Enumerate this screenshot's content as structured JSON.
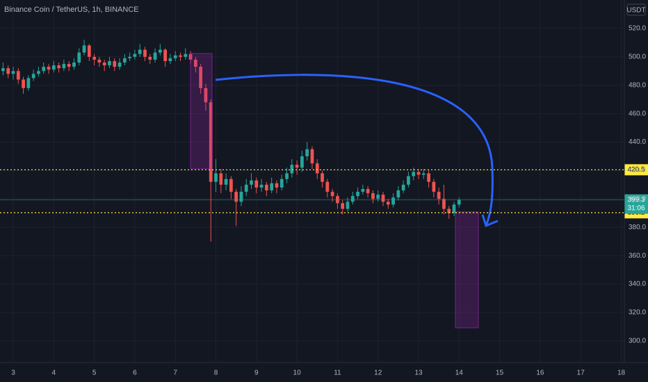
{
  "chart_data": {
    "type": "candlestick",
    "title": "Binance Coin / TetherUS, 1h, BINANCE",
    "currency": "USDT",
    "up_color": "#26a69a",
    "down_color": "#ef5350",
    "xlim": [
      2.674,
      18.077
    ],
    "ylim": [
      284.8,
      540
    ],
    "xticks": [
      3,
      4,
      5,
      6,
      7,
      8,
      9,
      10,
      11,
      12,
      13,
      14,
      15,
      16,
      17,
      18
    ],
    "yticks": [
      {
        "value": 300,
        "label": "300.0"
      },
      {
        "value": 320,
        "label": "320.0"
      },
      {
        "value": 340,
        "label": "340.0"
      },
      {
        "value": 360,
        "label": "360.0"
      },
      {
        "value": 380,
        "label": "380.0"
      },
      {
        "value": 400,
        "label": "400.0"
      },
      {
        "value": 420,
        "label": "420.0"
      },
      {
        "value": 440,
        "label": "440.0"
      },
      {
        "value": 460,
        "label": "460.0"
      },
      {
        "value": 480,
        "label": "480.0"
      },
      {
        "value": 500,
        "label": "500.0"
      },
      {
        "value": 520,
        "label": "520.0"
      }
    ],
    "grid": true,
    "levels": [
      {
        "value": 420.5,
        "color": "#ffeb3b"
      },
      {
        "value": 390.2,
        "color": "#ffeb3b"
      }
    ],
    "last": {
      "value": 399.3,
      "countdown": "31:06",
      "color": "#26a69a"
    },
    "candles": [
      {
        "x": 2.75,
        "o": 490,
        "h": 496,
        "l": 487,
        "c": 492
      },
      {
        "x": 2.875,
        "o": 492,
        "h": 494,
        "l": 485,
        "c": 488
      },
      {
        "x": 3,
        "o": 488,
        "h": 493,
        "l": 484,
        "c": 490
      },
      {
        "x": 3.125,
        "o": 490,
        "h": 492,
        "l": 481,
        "c": 484
      },
      {
        "x": 3.25,
        "o": 484,
        "h": 486,
        "l": 474,
        "c": 478
      },
      {
        "x": 3.375,
        "o": 478,
        "h": 487,
        "l": 476,
        "c": 485
      },
      {
        "x": 3.5,
        "o": 485,
        "h": 491,
        "l": 483,
        "c": 488
      },
      {
        "x": 3.625,
        "o": 488,
        "h": 493,
        "l": 486,
        "c": 490
      },
      {
        "x": 3.75,
        "o": 490,
        "h": 496,
        "l": 488,
        "c": 493
      },
      {
        "x": 3.875,
        "o": 493,
        "h": 495,
        "l": 488,
        "c": 491
      },
      {
        "x": 4,
        "o": 491,
        "h": 497,
        "l": 489,
        "c": 494
      },
      {
        "x": 4.125,
        "o": 494,
        "h": 496,
        "l": 489,
        "c": 492
      },
      {
        "x": 4.25,
        "o": 492,
        "h": 498,
        "l": 490,
        "c": 495
      },
      {
        "x": 4.375,
        "o": 495,
        "h": 497,
        "l": 490,
        "c": 493
      },
      {
        "x": 4.5,
        "o": 493,
        "h": 499,
        "l": 491,
        "c": 496
      },
      {
        "x": 4.625,
        "o": 496,
        "h": 506,
        "l": 494,
        "c": 503
      },
      {
        "x": 4.75,
        "o": 503,
        "h": 512,
        "l": 501,
        "c": 508
      },
      {
        "x": 4.875,
        "o": 508,
        "h": 509,
        "l": 497,
        "c": 500
      },
      {
        "x": 5,
        "o": 500,
        "h": 502,
        "l": 494,
        "c": 498
      },
      {
        "x": 5.125,
        "o": 498,
        "h": 500,
        "l": 493,
        "c": 496
      },
      {
        "x": 5.25,
        "o": 496,
        "h": 498,
        "l": 490,
        "c": 494
      },
      {
        "x": 5.375,
        "o": 494,
        "h": 500,
        "l": 492,
        "c": 497
      },
      {
        "x": 5.5,
        "o": 497,
        "h": 499,
        "l": 490,
        "c": 493
      },
      {
        "x": 5.625,
        "o": 493,
        "h": 499,
        "l": 491,
        "c": 496
      },
      {
        "x": 5.75,
        "o": 496,
        "h": 502,
        "l": 494,
        "c": 499
      },
      {
        "x": 5.875,
        "o": 499,
        "h": 503,
        "l": 497,
        "c": 500
      },
      {
        "x": 6,
        "o": 500,
        "h": 505,
        "l": 498,
        "c": 502
      },
      {
        "x": 6.125,
        "o": 502,
        "h": 509,
        "l": 500,
        "c": 505
      },
      {
        "x": 6.25,
        "o": 505,
        "h": 507,
        "l": 497,
        "c": 500
      },
      {
        "x": 6.375,
        "o": 500,
        "h": 502,
        "l": 495,
        "c": 498
      },
      {
        "x": 6.5,
        "o": 498,
        "h": 506,
        "l": 496,
        "c": 503
      },
      {
        "x": 6.625,
        "o": 503,
        "h": 509,
        "l": 501,
        "c": 505
      },
      {
        "x": 6.75,
        "o": 505,
        "h": 506,
        "l": 493,
        "c": 497
      },
      {
        "x": 6.875,
        "o": 497,
        "h": 502,
        "l": 495,
        "c": 499
      },
      {
        "x": 7,
        "o": 499,
        "h": 504,
        "l": 497,
        "c": 501
      },
      {
        "x": 7.125,
        "o": 501,
        "h": 503,
        "l": 497,
        "c": 500
      },
      {
        "x": 7.25,
        "o": 500,
        "h": 506,
        "l": 498,
        "c": 502
      },
      {
        "x": 7.375,
        "o": 502,
        "h": 504,
        "l": 495,
        "c": 498
      },
      {
        "x": 7.5,
        "o": 498,
        "h": 500,
        "l": 489,
        "c": 493
      },
      {
        "x": 7.625,
        "o": 493,
        "h": 495,
        "l": 474,
        "c": 478
      },
      {
        "x": 7.75,
        "o": 478,
        "h": 481,
        "l": 462,
        "c": 468
      },
      {
        "x": 7.875,
        "o": 468,
        "h": 470,
        "l": 370,
        "c": 412
      },
      {
        "x": 8,
        "o": 412,
        "h": 428,
        "l": 405,
        "c": 418
      },
      {
        "x": 8.125,
        "o": 418,
        "h": 421,
        "l": 404,
        "c": 410
      },
      {
        "x": 8.25,
        "o": 410,
        "h": 418,
        "l": 406,
        "c": 414
      },
      {
        "x": 8.375,
        "o": 414,
        "h": 416,
        "l": 400,
        "c": 405
      },
      {
        "x": 8.5,
        "o": 405,
        "h": 407,
        "l": 381,
        "c": 398
      },
      {
        "x": 8.625,
        "o": 398,
        "h": 409,
        "l": 395,
        "c": 405
      },
      {
        "x": 8.75,
        "o": 405,
        "h": 414,
        "l": 402,
        "c": 410
      },
      {
        "x": 8.875,
        "o": 410,
        "h": 418,
        "l": 407,
        "c": 413
      },
      {
        "x": 9,
        "o": 413,
        "h": 415,
        "l": 404,
        "c": 408
      },
      {
        "x": 9.125,
        "o": 408,
        "h": 414,
        "l": 405,
        "c": 410
      },
      {
        "x": 9.25,
        "o": 410,
        "h": 412,
        "l": 402,
        "c": 406
      },
      {
        "x": 9.375,
        "o": 406,
        "h": 415,
        "l": 404,
        "c": 411
      },
      {
        "x": 9.5,
        "o": 411,
        "h": 413,
        "l": 404,
        "c": 408
      },
      {
        "x": 9.625,
        "o": 408,
        "h": 417,
        "l": 406,
        "c": 414
      },
      {
        "x": 9.75,
        "o": 414,
        "h": 422,
        "l": 411,
        "c": 418
      },
      {
        "x": 9.875,
        "o": 418,
        "h": 428,
        "l": 415,
        "c": 424
      },
      {
        "x": 10,
        "o": 424,
        "h": 427,
        "l": 417,
        "c": 422
      },
      {
        "x": 10.125,
        "o": 422,
        "h": 434,
        "l": 419,
        "c": 430
      },
      {
        "x": 10.25,
        "o": 430,
        "h": 440,
        "l": 427,
        "c": 435
      },
      {
        "x": 10.375,
        "o": 435,
        "h": 437,
        "l": 421,
        "c": 425
      },
      {
        "x": 10.5,
        "o": 425,
        "h": 428,
        "l": 414,
        "c": 418
      },
      {
        "x": 10.625,
        "o": 418,
        "h": 420,
        "l": 408,
        "c": 412
      },
      {
        "x": 10.75,
        "o": 412,
        "h": 414,
        "l": 401,
        "c": 405
      },
      {
        "x": 10.875,
        "o": 405,
        "h": 407,
        "l": 398,
        "c": 402
      },
      {
        "x": 11,
        "o": 402,
        "h": 404,
        "l": 393,
        "c": 397
      },
      {
        "x": 11.125,
        "o": 397,
        "h": 399,
        "l": 389,
        "c": 393
      },
      {
        "x": 11.25,
        "o": 393,
        "h": 401,
        "l": 391,
        "c": 398
      },
      {
        "x": 11.375,
        "o": 398,
        "h": 405,
        "l": 396,
        "c": 402
      },
      {
        "x": 11.5,
        "o": 402,
        "h": 408,
        "l": 400,
        "c": 405
      },
      {
        "x": 11.625,
        "o": 405,
        "h": 410,
        "l": 403,
        "c": 407
      },
      {
        "x": 11.75,
        "o": 407,
        "h": 409,
        "l": 401,
        "c": 404
      },
      {
        "x": 11.875,
        "o": 404,
        "h": 406,
        "l": 397,
        "c": 400
      },
      {
        "x": 12,
        "o": 400,
        "h": 406,
        "l": 398,
        "c": 403
      },
      {
        "x": 12.125,
        "o": 403,
        "h": 405,
        "l": 395,
        "c": 398
      },
      {
        "x": 12.25,
        "o": 398,
        "h": 400,
        "l": 393,
        "c": 396
      },
      {
        "x": 12.375,
        "o": 396,
        "h": 404,
        "l": 394,
        "c": 401
      },
      {
        "x": 12.5,
        "o": 401,
        "h": 409,
        "l": 399,
        "c": 406
      },
      {
        "x": 12.625,
        "o": 406,
        "h": 413,
        "l": 404,
        "c": 410
      },
      {
        "x": 12.75,
        "o": 410,
        "h": 419,
        "l": 408,
        "c": 416
      },
      {
        "x": 12.875,
        "o": 416,
        "h": 422,
        "l": 413,
        "c": 419
      },
      {
        "x": 13,
        "o": 419,
        "h": 421,
        "l": 414,
        "c": 417
      },
      {
        "x": 13.125,
        "o": 417,
        "h": 421,
        "l": 414,
        "c": 418
      },
      {
        "x": 13.25,
        "o": 418,
        "h": 420,
        "l": 408,
        "c": 412
      },
      {
        "x": 13.375,
        "o": 412,
        "h": 414,
        "l": 401,
        "c": 405
      },
      {
        "x": 13.5,
        "o": 405,
        "h": 408,
        "l": 396,
        "c": 400
      },
      {
        "x": 13.625,
        "o": 400,
        "h": 410,
        "l": 389,
        "c": 393
      },
      {
        "x": 13.75,
        "o": 393,
        "h": 395,
        "l": 386,
        "c": 390
      },
      {
        "x": 13.875,
        "o": 390,
        "h": 398,
        "l": 388,
        "c": 396
      },
      {
        "x": 14,
        "o": 396,
        "h": 401,
        "l": 394,
        "c": 399.3
      }
    ]
  }
}
